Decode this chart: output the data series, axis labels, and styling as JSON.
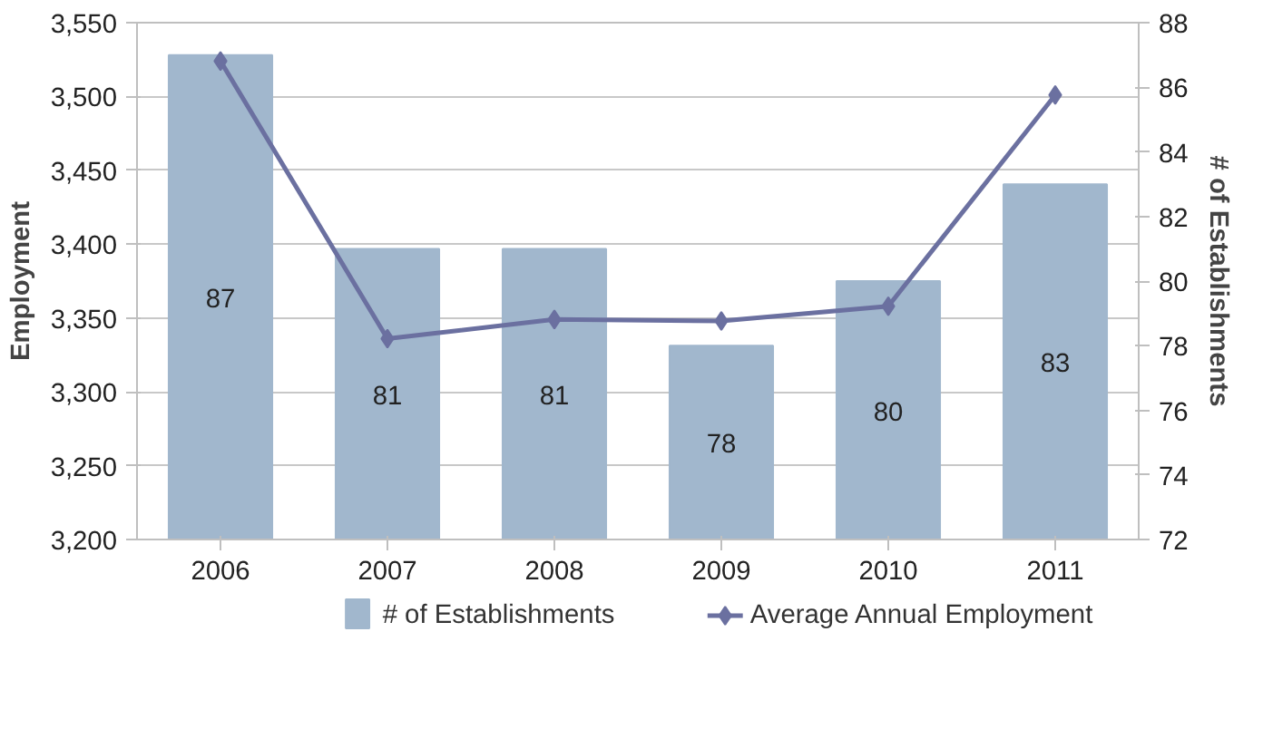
{
  "chart_data": {
    "type": "bar",
    "categories": [
      "2006",
      "2007",
      "2008",
      "2009",
      "2010",
      "2011"
    ],
    "ylabel": "Employment",
    "y2label": "# of Establishments",
    "ylim": [
      3200,
      3550
    ],
    "yticks": [
      {
        "value": 3200,
        "label": "3,200"
      },
      {
        "value": 3250,
        "label": "3,250"
      },
      {
        "value": 3300,
        "label": "3,300"
      },
      {
        "value": 3350,
        "label": "3,350"
      },
      {
        "value": 3400,
        "label": "3,400"
      },
      {
        "value": 3450,
        "label": "3,450"
      },
      {
        "value": 3500,
        "label": "3,500"
      },
      {
        "value": 3550,
        "label": "3,550"
      }
    ],
    "y2lim": [
      72,
      88
    ],
    "y2ticks": [
      72,
      74,
      76,
      78,
      80,
      82,
      84,
      86,
      88
    ],
    "series": [
      {
        "name": "# of Establishments",
        "axis": "y2",
        "color": "#a1b7cd",
        "values": [
          87,
          81,
          81,
          78,
          80,
          83
        ],
        "value_labels": [
          "87",
          "81",
          "81",
          "78",
          "80",
          "83"
        ]
      },
      {
        "name": "Average Annual Employment",
        "type": "line",
        "color": "#6b70a0",
        "marker": "diamond",
        "values": [
          3524,
          3336,
          3349,
          3348,
          3358,
          3501
        ]
      }
    ],
    "grid": "y",
    "legend": "bottom"
  }
}
